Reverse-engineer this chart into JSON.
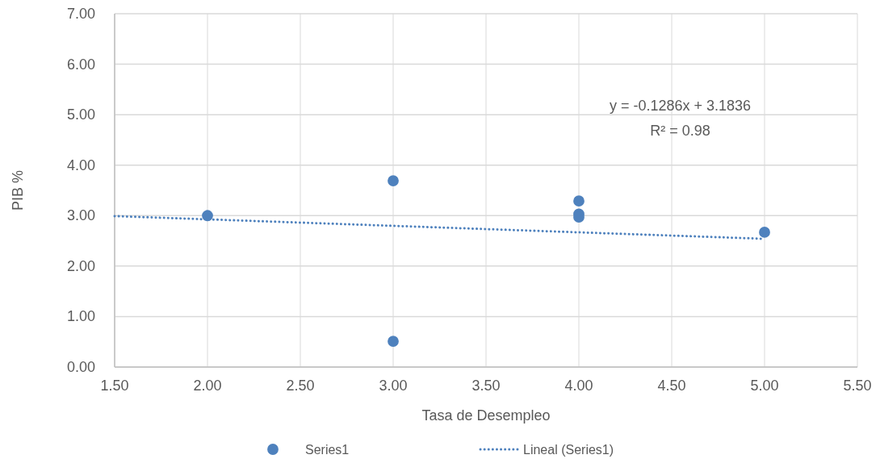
{
  "chart_data": {
    "type": "scatter",
    "xlabel": "Tasa de Desempleo",
    "ylabel": "PIB %",
    "xlim": [
      1.5,
      5.5
    ],
    "xticks": [
      {
        "value": 1.5,
        "label": "1.50"
      },
      {
        "value": 2,
        "label": "2.00"
      },
      {
        "value": 2.5,
        "label": "2.50"
      },
      {
        "value": 3,
        "label": "3.00"
      },
      {
        "value": 3.5,
        "label": "3.50"
      },
      {
        "value": 4,
        "label": "4.00"
      },
      {
        "value": 4.5,
        "label": "4.50"
      },
      {
        "value": 5,
        "label": "5.00"
      },
      {
        "value": 5.5,
        "label": "5.50"
      }
    ],
    "ylim": [
      0,
      7
    ],
    "yticks": [
      {
        "value": 0,
        "label": "0.00"
      },
      {
        "value": 1,
        "label": "1.00"
      },
      {
        "value": 2,
        "label": "2.00"
      },
      {
        "value": 3,
        "label": "3.00"
      },
      {
        "value": 4,
        "label": "4.00"
      },
      {
        "value": 5,
        "label": "5.00"
      },
      {
        "value": 6,
        "label": "6.00"
      },
      {
        "value": 7,
        "label": "7.00"
      }
    ],
    "grid": true,
    "legend": "bottom",
    "series": [
      {
        "name": "Series1",
        "color": "#4e81bd",
        "marker": "circle",
        "x": [
          2,
          3,
          3,
          4,
          4,
          4,
          5
        ],
        "values": [
          3.0,
          3.69,
          0.51,
          3.29,
          3.03,
          2.97,
          2.67
        ]
      },
      {
        "name": "Lineal (Series1)",
        "type": "line",
        "color": "#4e81bd",
        "marker": "none",
        "line_style": "dotted",
        "x": [
          1.5,
          5
        ],
        "values": [
          2.99,
          2.54
        ]
      }
    ],
    "annotations": [
      "y = -0.1286x + 3.1836",
      "R² = 0.98"
    ]
  }
}
